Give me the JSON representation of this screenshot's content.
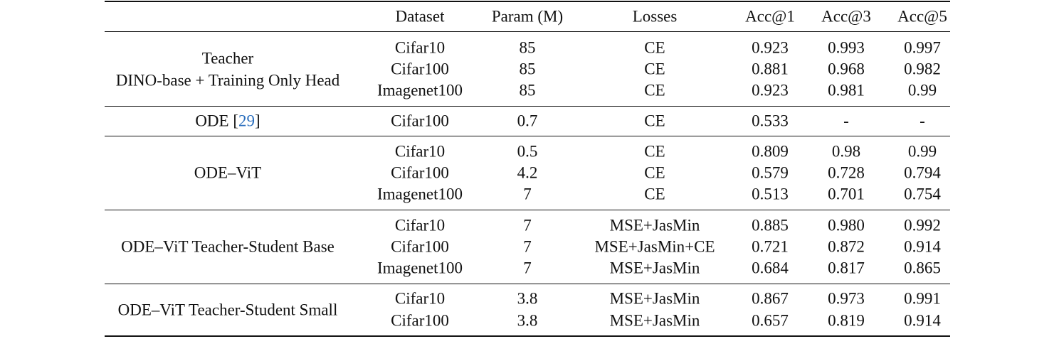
{
  "headers": [
    "",
    "Dataset",
    "Param (M)",
    "Losses",
    "Acc@1",
    "Acc@3",
    "Acc@5"
  ],
  "groups": [
    {
      "label_lines": [
        "Teacher",
        "DINO-base + Training Only Head"
      ],
      "rows": [
        [
          "Cifar10",
          "85",
          "CE",
          "0.923",
          "0.993",
          "0.997"
        ],
        [
          "Cifar100",
          "85",
          "CE",
          "0.881",
          "0.968",
          "0.982"
        ],
        [
          "Imagenet100",
          "85",
          "CE",
          "0.923",
          "0.981",
          "0.99"
        ]
      ]
    },
    {
      "label_lines": [
        "ODE"
      ],
      "label_cite": "29",
      "rows": [
        [
          "Cifar100",
          "0.7",
          "CE",
          "0.533",
          "-",
          "-"
        ]
      ]
    },
    {
      "label_lines": [
        "ODE–ViT"
      ],
      "rows": [
        [
          "Cifar10",
          "0.5",
          "CE",
          "0.809",
          "0.98",
          "0.99"
        ],
        [
          "Cifar100",
          "4.2",
          "CE",
          "0.579",
          "0.728",
          "0.794"
        ],
        [
          "Imagenet100",
          "7",
          "CE",
          "0.513",
          "0.701",
          "0.754"
        ]
      ]
    },
    {
      "label_lines": [
        "ODE–ViT Teacher-Student Base"
      ],
      "rows": [
        [
          "Cifar10",
          "7",
          "MSE+JasMin",
          "0.885",
          "0.980",
          "0.992"
        ],
        [
          "Cifar100",
          "7",
          "MSE+JasMin+CE",
          "0.721",
          "0.872",
          "0.914"
        ],
        [
          "Imagenet100",
          "7",
          "MSE+JasMin",
          "0.684",
          "0.817",
          "0.865"
        ]
      ]
    },
    {
      "label_lines": [
        "ODE–ViT Teacher-Student Small"
      ],
      "rows": [
        [
          "Cifar10",
          "3.8",
          "MSE+JasMin",
          "0.867",
          "0.973",
          "0.991"
        ],
        [
          "Cifar100",
          "3.8",
          "MSE+JasMin",
          "0.657",
          "0.819",
          "0.914"
        ]
      ]
    }
  ]
}
